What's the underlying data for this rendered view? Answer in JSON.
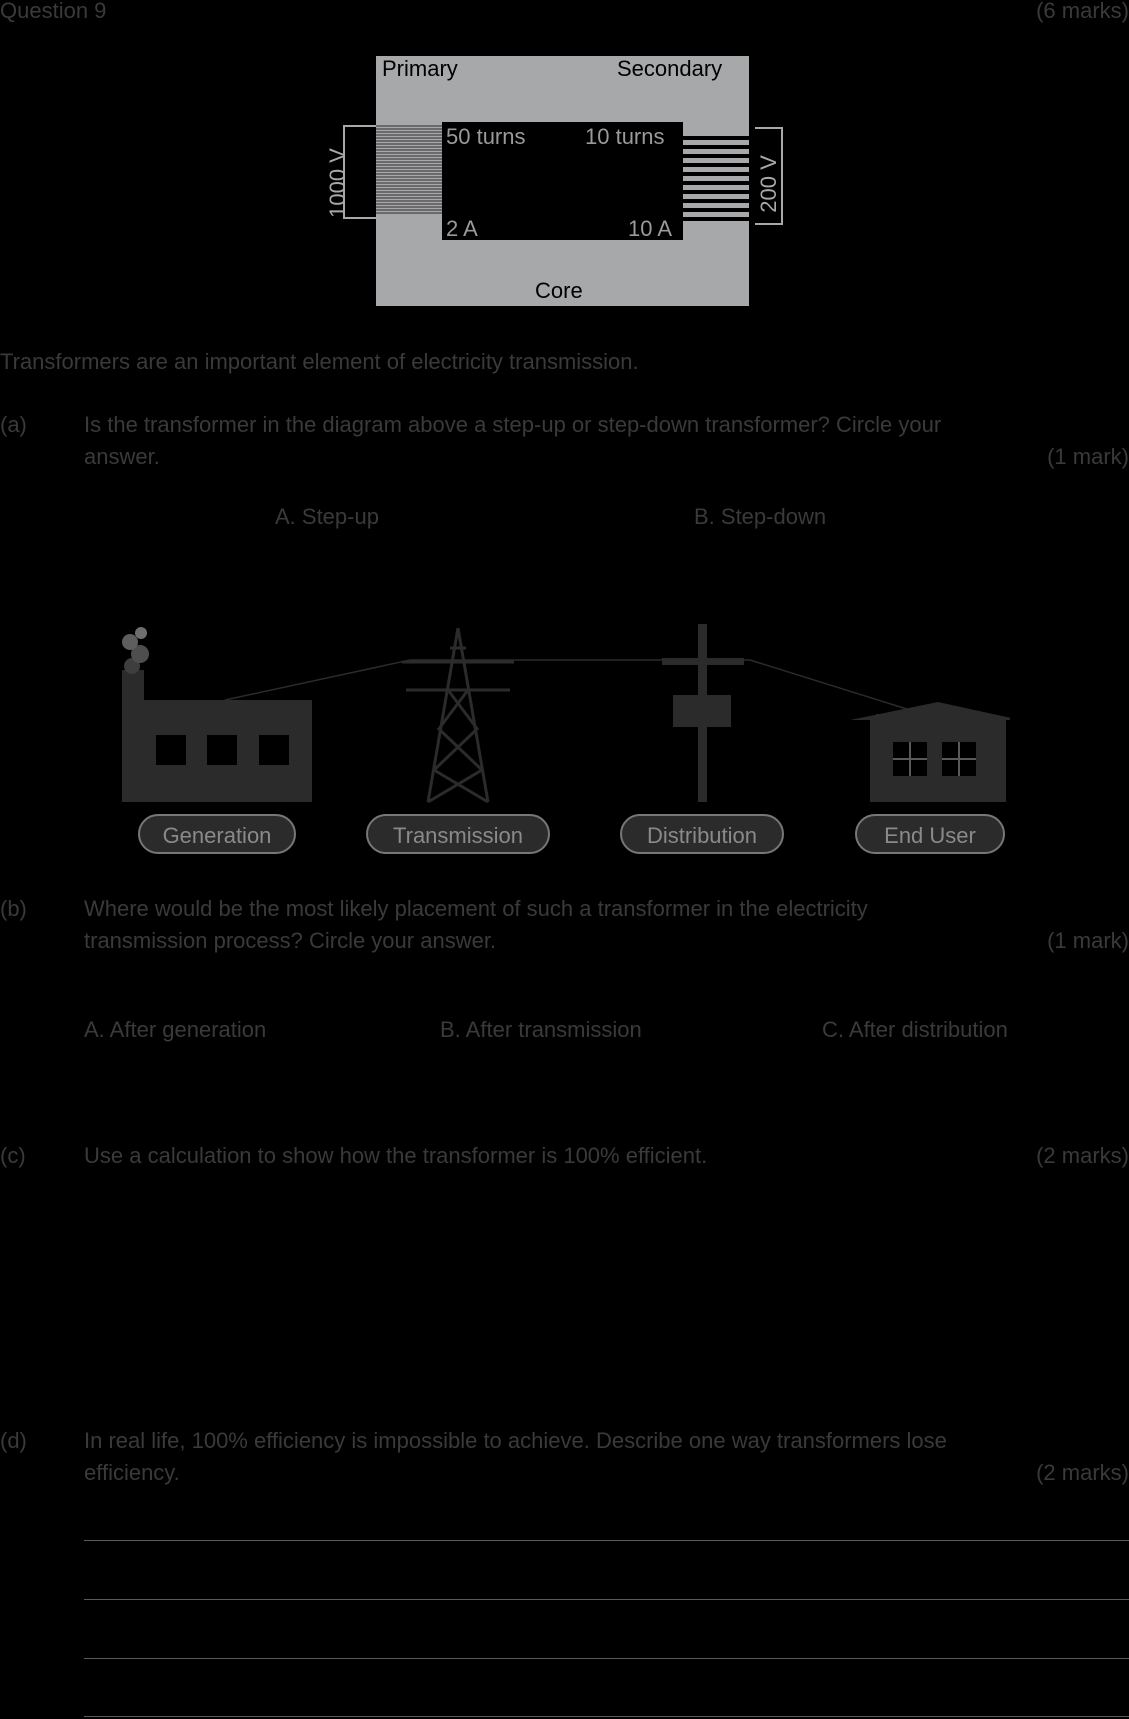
{
  "header": {
    "question": "Question 9",
    "marks": "(6 marks)"
  },
  "transformer": {
    "primary_label": "Primary",
    "secondary_label": "Secondary",
    "core_label": "Core",
    "primary_turns": "50 turns",
    "secondary_turns": "10 turns",
    "primary_current": "2 A",
    "secondary_current": "10 A",
    "primary_voltage": "1000 V",
    "secondary_voltage": "200 V",
    "colors": {
      "core": "#a7a8aa",
      "text": "#000000",
      "window": "#000000"
    }
  },
  "intro": "Transformers are an important element of electricity transmission.",
  "part_a": {
    "label": "(a)",
    "line1": "Is the transformer in the diagram above a step-up or step-down transformer? Circle your",
    "line2": "answer.",
    "marks": "(1 mark)",
    "options": [
      "A. Step-up",
      "B. Step-down"
    ]
  },
  "process": {
    "stages": [
      "Generation",
      "Transmission",
      "Distribution",
      "End User"
    ],
    "icons": [
      "factory-icon",
      "pylon-icon",
      "power-pole-icon",
      "house-icon"
    ],
    "colors": {
      "icon": "#2b2b2b",
      "label_fill": "#2b2b2b",
      "label_border": "#777777"
    }
  },
  "part_b": {
    "label": "(b)",
    "line1": "Where would be the most likely placement of such a transformer in the electricity",
    "line2": "transmission process? Circle your answer.",
    "marks": "(1 mark)",
    "options": [
      "A. After generation",
      "B. After transmission",
      "C. After distribution"
    ]
  },
  "part_c": {
    "label": "(c)",
    "text": "Use a calculation to show how the transformer is 100% efficient.",
    "marks": "(2 marks)"
  },
  "part_d": {
    "label": "(d)",
    "line1": "In real life, 100% efficiency is impossible to achieve. Describe one way transformers lose",
    "line2": "efficiency.",
    "marks": "(2 marks)"
  }
}
